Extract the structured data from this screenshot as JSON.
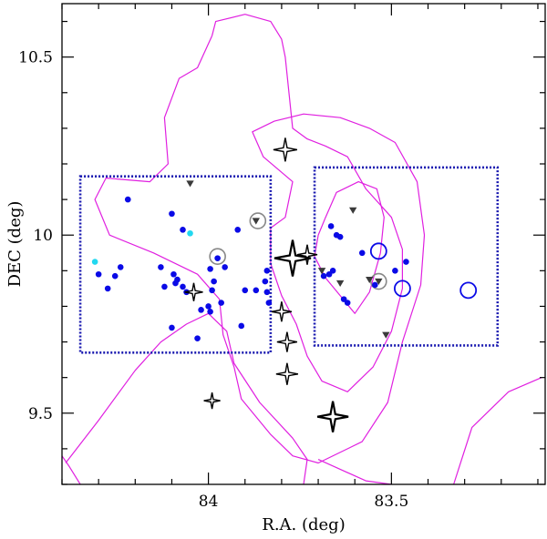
{
  "chart_data": {
    "type": "scatter",
    "title": "",
    "xlabel": "R.A. (deg)",
    "ylabel": "DEC (deg)",
    "xlim": [
      84.4,
      83.08
    ],
    "ylim": [
      9.3,
      10.65
    ],
    "x_axis_reversed": true,
    "x_ticks": [
      {
        "value": 84,
        "label": "84"
      },
      {
        "value": 83.5,
        "label": "83.5"
      }
    ],
    "y_ticks": [
      {
        "value": 9.5,
        "label": "9.5"
      },
      {
        "value": 10,
        "label": "10"
      },
      {
        "value": 10.5,
        "label": "10.5"
      }
    ],
    "colors": {
      "contour": "#e020e0",
      "box": "#1a1ab0",
      "blue_dot": "#0a0ae6",
      "cyan_dot": "#22d8f0",
      "triangle": "#3a3a3a",
      "gray_circle": "#888888",
      "blue_circle": "#0a0ae6",
      "star": "#000000"
    },
    "regions": [
      {
        "name": "box-east",
        "ra_min": 83.83,
        "ra_max": 84.35,
        "dec_min": 9.67,
        "dec_max": 10.165
      },
      {
        "name": "box-west",
        "ra_min": 83.21,
        "ra_max": 83.71,
        "dec_min": 9.69,
        "dec_max": 10.19
      }
    ],
    "series": [
      {
        "name": "blue-dots",
        "points": [
          [
            84.22,
            10.1
          ],
          [
            84.1,
            10.06
          ],
          [
            84.07,
            10.015
          ],
          [
            84.3,
            9.89
          ],
          [
            84.255,
            9.885
          ],
          [
            84.24,
            9.91
          ],
          [
            84.275,
            9.85
          ],
          [
            84.13,
            9.91
          ],
          [
            84.095,
            9.89
          ],
          [
            84.085,
            9.875
          ],
          [
            84.07,
            9.855
          ],
          [
            84.09,
            9.865
          ],
          [
            84.12,
            9.855
          ],
          [
            83.995,
            9.905
          ],
          [
            83.975,
            9.935
          ],
          [
            83.955,
            9.91
          ],
          [
            83.985,
            9.87
          ],
          [
            83.99,
            9.845
          ],
          [
            83.965,
            9.81
          ],
          [
            84.0,
            9.8
          ],
          [
            83.995,
            9.785
          ],
          [
            84.02,
            9.79
          ],
          [
            84.06,
            9.84
          ],
          [
            84.1,
            9.74
          ],
          [
            84.03,
            9.71
          ],
          [
            83.9,
            9.845
          ],
          [
            83.87,
            9.845
          ],
          [
            83.92,
            10.015
          ],
          [
            83.84,
            9.9
          ],
          [
            83.845,
            9.87
          ],
          [
            83.84,
            9.84
          ],
          [
            83.835,
            9.81
          ],
          [
            83.91,
            9.745
          ],
          [
            83.665,
            10.025
          ],
          [
            83.65,
            10.0
          ],
          [
            83.64,
            9.995
          ],
          [
            83.66,
            9.9
          ],
          [
            83.67,
            9.89
          ],
          [
            83.685,
            9.885
          ],
          [
            83.63,
            9.82
          ],
          [
            83.62,
            9.81
          ],
          [
            83.58,
            9.95
          ],
          [
            83.49,
            9.9
          ],
          [
            83.46,
            9.925
          ],
          [
            83.545,
            9.86
          ]
        ]
      },
      {
        "name": "cyan-dots",
        "points": [
          [
            84.31,
            9.925
          ],
          [
            84.05,
            10.005
          ]
        ]
      },
      {
        "name": "triangles",
        "points": [
          [
            84.05,
            10.145
          ],
          [
            83.87,
            10.04
          ],
          [
            83.605,
            10.07
          ],
          [
            83.69,
            9.9
          ],
          [
            83.56,
            9.875
          ],
          [
            83.535,
            9.87
          ],
          [
            83.515,
            9.72
          ],
          [
            83.64,
            9.865
          ]
        ]
      },
      {
        "name": "gray-circles",
        "points": [
          [
            83.975,
            9.94
          ],
          [
            83.865,
            10.04
          ],
          [
            83.535,
            9.87
          ]
        ]
      },
      {
        "name": "blue-circles",
        "points": [
          [
            83.535,
            9.955
          ],
          [
            83.47,
            9.85
          ],
          [
            83.29,
            9.845
          ]
        ]
      },
      {
        "name": "stars",
        "points": [
          [
            83.79,
            10.24,
            13
          ],
          [
            83.77,
            9.935,
            20
          ],
          [
            83.73,
            9.945,
            11
          ],
          [
            84.04,
            9.84,
            10
          ],
          [
            83.8,
            9.785,
            11
          ],
          [
            83.785,
            9.7,
            11
          ],
          [
            83.785,
            9.61,
            12
          ],
          [
            83.66,
            9.49,
            17
          ],
          [
            83.99,
            9.535,
            9
          ]
        ]
      }
    ],
    "contours": [
      [
        [
          84.39,
          9.36
        ],
        [
          84.3,
          9.48
        ],
        [
          84.2,
          9.62
        ],
        [
          84.13,
          9.7
        ],
        [
          84.06,
          9.75
        ],
        [
          84.0,
          9.78
        ],
        [
          83.95,
          9.73
        ],
        [
          83.93,
          9.64
        ],
        [
          83.86,
          9.53
        ],
        [
          83.77,
          9.43
        ],
        [
          83.73,
          9.37
        ],
        [
          83.74,
          9.3
        ]
      ],
      [
        [
          83.33,
          9.3
        ],
        [
          83.28,
          9.46
        ],
        [
          83.18,
          9.56
        ],
        [
          83.09,
          9.6
        ]
      ],
      [
        [
          83.7,
          9.37
        ],
        [
          83.57,
          9.31
        ],
        [
          83.5,
          9.3
        ]
      ],
      [
        [
          84.35,
          9.3
        ],
        [
          84.38,
          9.35
        ],
        [
          84.4,
          9.38
        ]
      ],
      [
        [
          83.99,
          10.56
        ],
        [
          84.03,
          10.47
        ],
        [
          84.08,
          10.44
        ],
        [
          84.12,
          10.33
        ],
        [
          84.11,
          10.2
        ],
        [
          84.16,
          10.15
        ],
        [
          84.28,
          10.16
        ],
        [
          84.31,
          10.1
        ],
        [
          84.27,
          10.0
        ],
        [
          84.15,
          9.95
        ],
        [
          84.03,
          9.89
        ],
        [
          83.97,
          9.82
        ],
        [
          83.96,
          9.72
        ],
        [
          83.93,
          9.63
        ],
        [
          83.91,
          9.54
        ],
        [
          83.83,
          9.44
        ],
        [
          83.77,
          9.38
        ],
        [
          83.7,
          9.36
        ],
        [
          83.58,
          9.42
        ],
        [
          83.51,
          9.53
        ],
        [
          83.47,
          9.7
        ],
        [
          83.42,
          9.86
        ],
        [
          83.41,
          10.0
        ],
        [
          83.43,
          10.15
        ],
        [
          83.49,
          10.26
        ],
        [
          83.56,
          10.3
        ],
        [
          83.64,
          10.33
        ],
        [
          83.74,
          10.34
        ],
        [
          83.82,
          10.32
        ],
        [
          83.88,
          10.29
        ],
        [
          83.85,
          10.22
        ],
        [
          83.77,
          10.15
        ],
        [
          83.79,
          10.05
        ],
        [
          83.83,
          10.02
        ],
        [
          83.83,
          9.92
        ],
        [
          83.8,
          9.83
        ],
        [
          83.76,
          9.75
        ],
        [
          83.73,
          9.66
        ],
        [
          83.69,
          9.59
        ],
        [
          83.62,
          9.56
        ],
        [
          83.55,
          9.63
        ],
        [
          83.5,
          9.73
        ],
        [
          83.47,
          9.85
        ],
        [
          83.47,
          9.96
        ],
        [
          83.5,
          10.05
        ],
        [
          83.57,
          10.13
        ],
        [
          83.62,
          10.22
        ],
        [
          83.68,
          10.25
        ],
        [
          83.73,
          10.27
        ],
        [
          83.77,
          10.3
        ],
        [
          83.79,
          10.5
        ],
        [
          83.8,
          10.55
        ],
        [
          83.83,
          10.6
        ],
        [
          83.9,
          10.62
        ],
        [
          83.98,
          10.6
        ],
        [
          83.99,
          10.56
        ]
      ],
      [
        [
          83.68,
          10.05
        ],
        [
          83.65,
          10.12
        ],
        [
          83.59,
          10.15
        ],
        [
          83.54,
          10.13
        ],
        [
          83.52,
          10.05
        ],
        [
          83.53,
          9.95
        ],
        [
          83.56,
          9.84
        ],
        [
          83.6,
          9.78
        ],
        [
          83.64,
          9.83
        ],
        [
          83.68,
          9.88
        ],
        [
          83.71,
          9.94
        ],
        [
          83.7,
          10.0
        ],
        [
          83.68,
          10.05
        ]
      ]
    ]
  }
}
